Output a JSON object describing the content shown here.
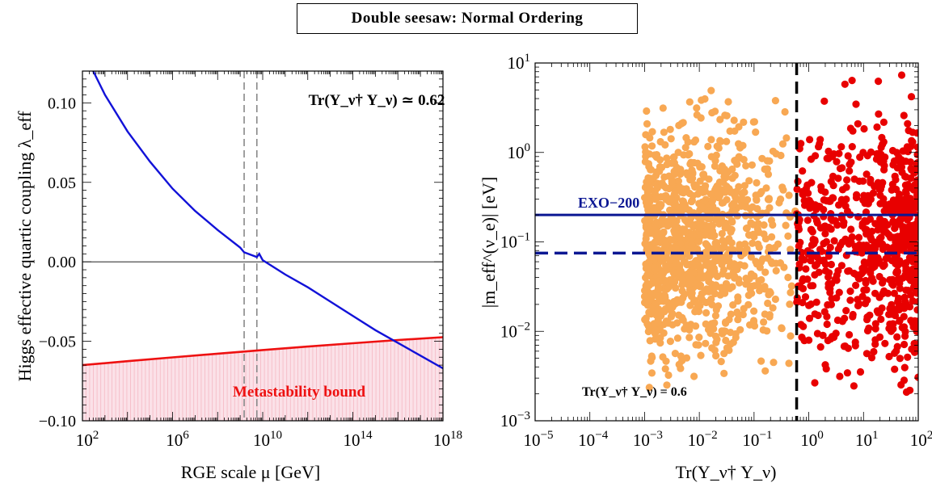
{
  "header": {
    "title": "Double seesaw: Normal Ordering"
  },
  "colors": {
    "blue_curve": "#1212d8",
    "metastability": "#ee1111",
    "metastability_fill": "#fbe1e8",
    "scatter_orange": "#f8a853",
    "scatter_red": "#e80000",
    "exo_line": "#0b1793",
    "guide_dashed": "#888888"
  },
  "chart_data": [
    {
      "type": "line",
      "xlabel": "RGE scale μ [GeV]",
      "ylabel": "Higgs effective quartic coupling λ_eff",
      "xscale": "log",
      "xlim": [
        100.0,
        1e+18
      ],
      "ylim": [
        -0.1,
        0.12
      ],
      "x_ticks": [
        "10^2",
        "10^6",
        "10^10",
        "10^14",
        "10^18"
      ],
      "y_ticks": [
        "0.10",
        "0.05",
        "0.00",
        "−0.05",
        "−0.10"
      ],
      "annotation": "Tr(Y_ν† Y_ν) ≃ 0.62",
      "region_label": "Metastability bound",
      "vertical_dashed_x": [
        1500000000.0,
        5500000000.0
      ],
      "horizontal_line_y": 0.0,
      "series": [
        {
          "x": [
            300.0,
            1000.0,
            10000.0,
            100000.0,
            1000000.0,
            10000000.0,
            100000000.0,
            1000000000.0,
            1500000000.0,
            5500000000.0,
            7000000000.0,
            10000000000.0,
            100000000000.0,
            1000000000000.0,
            10000000000000.0,
            100000000000000.0,
            1000000000000000.0,
            1e+16,
            1e+17,
            1e+18
          ],
          "y": [
            0.12,
            0.105,
            0.082,
            0.063,
            0.046,
            0.032,
            0.02,
            0.009,
            0.006,
            0.003,
            0.005,
            0.001,
            -0.008,
            -0.016,
            -0.025,
            -0.034,
            -0.043,
            -0.051,
            -0.059,
            -0.067
          ]
        },
        {
          "name": "Metastability bound",
          "x": [
            100.0,
            10000.0,
            1000000.0,
            100000000.0,
            10000000000.0,
            1000000000000.0,
            100000000000000.0,
            1e+16,
            1e+18
          ],
          "y": [
            -0.065,
            -0.0625,
            -0.0601,
            -0.0578,
            -0.0555,
            -0.0533,
            -0.0512,
            -0.0492,
            -0.0474
          ]
        }
      ]
    },
    {
      "type": "scatter",
      "xlabel": "Tr(Y_ν† Y_ν)",
      "ylabel": "|m_eff^(ν_e)| [eV]",
      "xscale": "log",
      "yscale": "log",
      "xlim": [
        1e-05,
        100.0
      ],
      "ylim": [
        0.001,
        10.0
      ],
      "x_ticks": [
        "10^-5",
        "10^-4",
        "10^-3",
        "10^-2",
        "10^-1",
        "10^0",
        "10^1",
        "10^2"
      ],
      "y_ticks": [
        "10^1",
        "10^0",
        "10^-1",
        "10^-2",
        "10^-3"
      ],
      "annotation": "Tr(Y_ν† Y_ν) = 0.6",
      "line_label": "EXO−200",
      "exo_bound_y": 0.2,
      "future_bound_y": 0.075,
      "vertical_dashed_x": 0.6,
      "series": [
        {
          "x_range": [
            0.001,
            0.6
          ],
          "y_range": [
            0.001,
            10.0
          ],
          "points": 1100
        },
        {
          "x_range": [
            0.6,
            100.0
          ],
          "y_range": [
            0.001,
            10.0
          ],
          "points": 750
        }
      ]
    }
  ]
}
